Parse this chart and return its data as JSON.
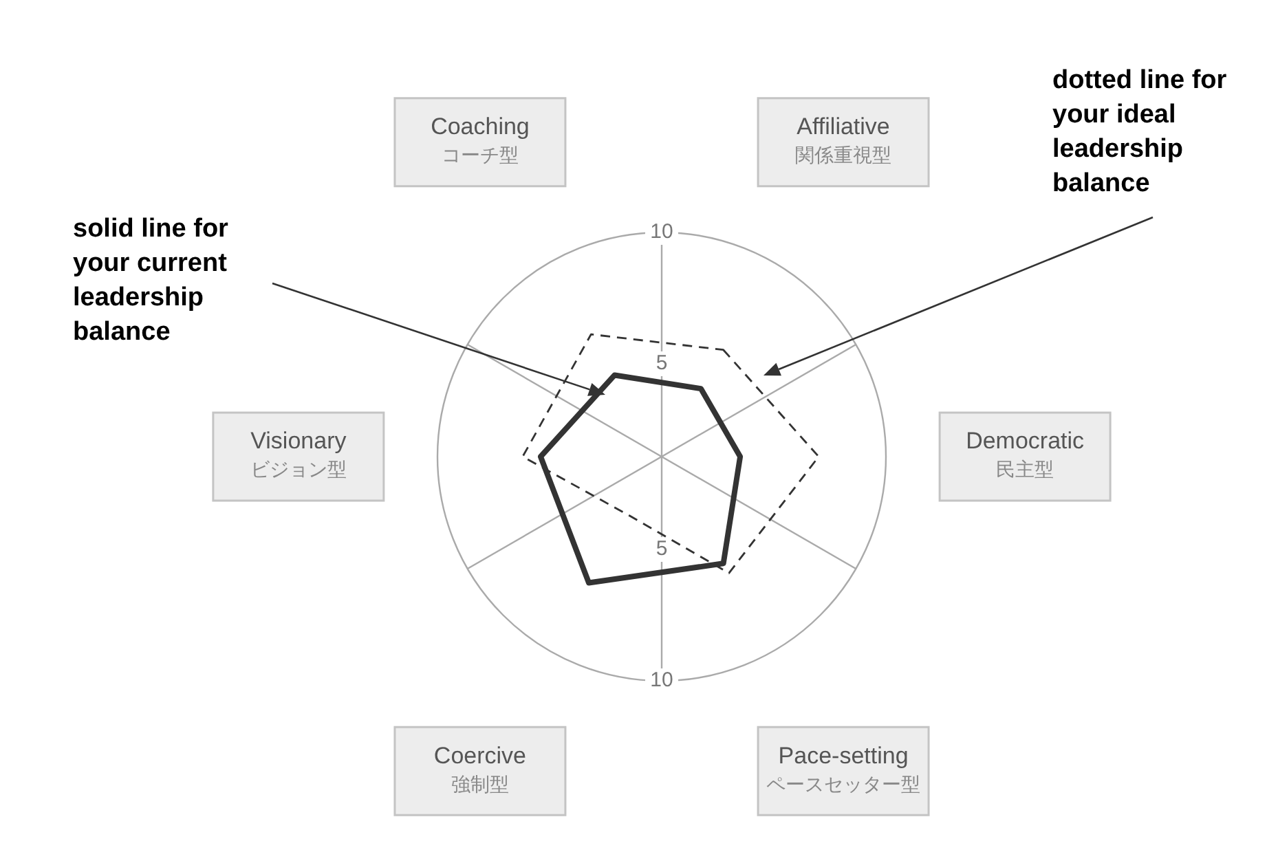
{
  "chart_data": {
    "type": "radar",
    "categories": [
      "Affiliative\n関係重視型",
      "Democratic\n民主型",
      "Pace-setting\nペースセッター型",
      "Coercive\n強制型",
      "Visionary\nビジョン型",
      "Coaching\nコーチ型"
    ],
    "series": [
      {
        "color": "#333333",
        "line_style": "solid",
        "values": [
          3.5,
          3.5,
          5.5,
          6.5,
          5.4,
          4.2
        ]
      },
      {
        "color": "#333333",
        "line_style": "dashed",
        "values": [
          5.5,
          7.0,
          6.0,
          3.0,
          6.2,
          6.3
        ]
      }
    ],
    "ylim": [
      0,
      10
    ],
    "yticks": [
      5,
      10
    ],
    "marker": "none",
    "legend": false,
    "annotations": [
      "solid line for your current leadership balance",
      "dotted line for your ideal leadership balance",
      "5",
      "10"
    ]
  }
}
